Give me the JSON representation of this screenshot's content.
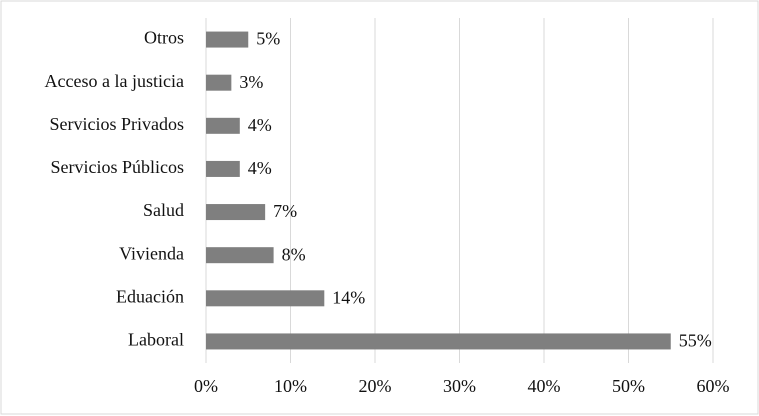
{
  "chart_data": {
    "type": "barh",
    "categories": [
      "Otros",
      "Acceso a la justicia",
      "Servicios Privados",
      "Servicios Públicos",
      "Salud",
      "Vivienda",
      "Eduación",
      "Laboral"
    ],
    "values": [
      5,
      3,
      4,
      4,
      7,
      8,
      14,
      55
    ],
    "value_labels": [
      "5%",
      "3%",
      "4%",
      "4%",
      "7%",
      "8%",
      "14%",
      "55%"
    ],
    "color": "#7f7f7f",
    "xlim": [
      0,
      60
    ],
    "xticks": [
      {
        "value": 0,
        "label": "0%"
      },
      {
        "value": 10,
        "label": "10%"
      },
      {
        "value": 20,
        "label": "20%"
      },
      {
        "value": 30,
        "label": "30%"
      },
      {
        "value": 40,
        "label": "40%"
      },
      {
        "value": 50,
        "label": "50%"
      },
      {
        "value": 60,
        "label": "60%"
      }
    ],
    "grid": true
  }
}
